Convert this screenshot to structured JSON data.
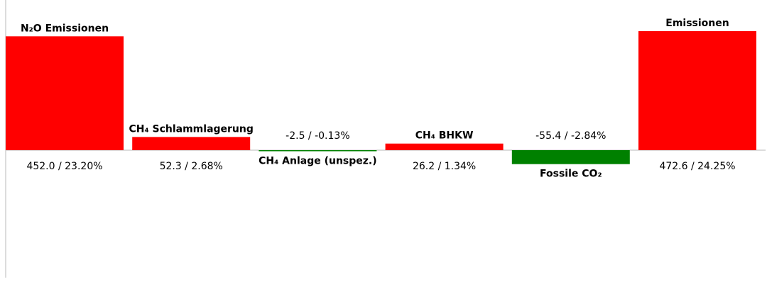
{
  "chart_data": {
    "type": "bar",
    "subtype": "waterfall",
    "categories": [
      "N₂O Emissionen",
      "CH₄ Schlammlagerung",
      "CH₄ Anlage (unspez.)",
      "CH₄ BHKW",
      "Fossile CO₂",
      "Emissionen"
    ],
    "values": [
      452.0,
      52.3,
      -2.5,
      26.2,
      -55.4,
      472.6
    ],
    "value_labels": [
      "452.0 / 23.20%",
      "52.3 / 2.68%",
      "-2.5 / -0.13%",
      "26.2 / 1.34%",
      "-55.4 / -2.84%",
      "472.6 / 24.25%"
    ],
    "colors": [
      "#ff0000",
      "#ff0000",
      "#008000",
      "#ff0000",
      "#008000",
      "#ff0000"
    ],
    "baseline_color": "#d0d0d0",
    "ylim": [
      -502,
      472.6
    ],
    "grid": false,
    "legend": "none",
    "title": "",
    "xlabel": "",
    "ylabel": ""
  }
}
